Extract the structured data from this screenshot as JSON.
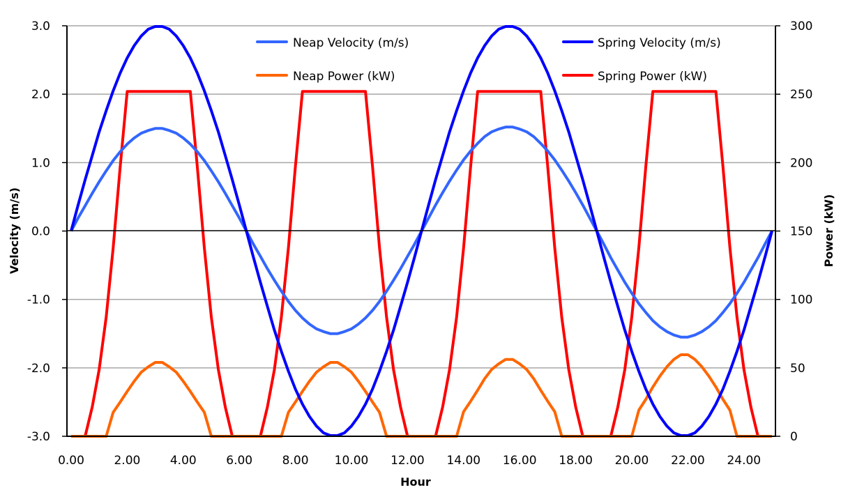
{
  "chart_data": {
    "type": "line",
    "title": "",
    "xlabel": "Hour",
    "ylabel": "Velocity (m/s)",
    "y2label": "Power (kW)",
    "xlim": [
      0,
      25.1
    ],
    "ylim": [
      -3.0,
      3.0
    ],
    "y2lim": [
      0,
      300
    ],
    "x_step": 0.25,
    "x_ticks": [
      "0.00",
      "2.00",
      "4.00",
      "6.00",
      "8.00",
      "10.00",
      "12.00",
      "14.00",
      "16.00",
      "18.00",
      "20.00",
      "22.00",
      "24.00"
    ],
    "x_tick_values": [
      0,
      2,
      4,
      6,
      8,
      10,
      12,
      14,
      16,
      18,
      20,
      22,
      24
    ],
    "y_ticks": [
      "3.0",
      "2.0",
      "1.0",
      "0.0",
      "-1.0",
      "-2.0",
      "-3.0"
    ],
    "y_tick_values": [
      3,
      2,
      1,
      0,
      -1,
      -2,
      -3
    ],
    "y2_ticks": [
      "300",
      "250",
      "200",
      "150",
      "100",
      "50",
      "0"
    ],
    "y2_tick_values": [
      300,
      250,
      200,
      150,
      100,
      50,
      0
    ],
    "grid": true,
    "legend_position": "top",
    "series": [
      {
        "name": "Neap Velocity (m/s)",
        "axis": "left",
        "color": "#3366ff",
        "values": [
          0,
          0.19,
          0.37,
          0.55,
          0.72,
          0.88,
          1.03,
          1.16,
          1.27,
          1.36,
          1.43,
          1.47,
          1.5,
          1.5,
          1.47,
          1.43,
          1.36,
          1.27,
          1.16,
          1.03,
          0.88,
          0.72,
          0.55,
          0.37,
          0.19,
          0,
          -0.19,
          -0.37,
          -0.55,
          -0.72,
          -0.88,
          -1.03,
          -1.16,
          -1.27,
          -1.36,
          -1.43,
          -1.47,
          -1.5,
          -1.5,
          -1.47,
          -1.43,
          -1.36,
          -1.27,
          -1.16,
          -1.03,
          -0.88,
          -0.72,
          -0.55,
          -0.37,
          -0.19,
          0,
          0.19,
          0.38,
          0.56,
          0.73,
          0.89,
          1.04,
          1.17,
          1.28,
          1.38,
          1.45,
          1.49,
          1.52,
          1.52,
          1.49,
          1.45,
          1.38,
          1.28,
          1.17,
          1.04,
          0.89,
          0.73,
          0.56,
          0.38,
          0.19,
          0,
          -0.19,
          -0.39,
          -0.57,
          -0.75,
          -0.91,
          -1.06,
          -1.19,
          -1.31,
          -1.4,
          -1.47,
          -1.52,
          -1.55,
          -1.55,
          -1.52,
          -1.47,
          -1.4,
          -1.31,
          -1.19,
          -1.06,
          -0.91,
          -0.75,
          -0.57,
          -0.39,
          -0.19,
          0
        ]
      },
      {
        "name": "Spring Velocity (m/s)",
        "axis": "left",
        "color": "#0000ff",
        "values": [
          0,
          0.38,
          0.75,
          1.1,
          1.45,
          1.76,
          2.05,
          2.31,
          2.53,
          2.71,
          2.85,
          2.95,
          2.99,
          2.99,
          2.95,
          2.85,
          2.71,
          2.53,
          2.31,
          2.05,
          1.76,
          1.45,
          1.1,
          0.75,
          0.38,
          0,
          -0.38,
          -0.75,
          -1.1,
          -1.45,
          -1.76,
          -2.05,
          -2.31,
          -2.53,
          -2.71,
          -2.85,
          -2.95,
          -2.99,
          -2.99,
          -2.95,
          -2.85,
          -2.71,
          -2.53,
          -2.31,
          -2.05,
          -1.76,
          -1.45,
          -1.1,
          -0.75,
          -0.38,
          0,
          0.38,
          0.75,
          1.1,
          1.45,
          1.76,
          2.05,
          2.31,
          2.53,
          2.71,
          2.85,
          2.95,
          2.99,
          2.99,
          2.95,
          2.85,
          2.71,
          2.53,
          2.31,
          2.05,
          1.76,
          1.45,
          1.1,
          0.75,
          0.38,
          0,
          -0.38,
          -0.75,
          -1.1,
          -1.45,
          -1.76,
          -2.05,
          -2.31,
          -2.53,
          -2.71,
          -2.85,
          -2.95,
          -2.99,
          -2.99,
          -2.95,
          -2.85,
          -2.71,
          -2.53,
          -2.31,
          -2.05,
          -1.76,
          -1.45,
          -1.1,
          -0.75,
          -0.38,
          0
        ]
      },
      {
        "name": "Neap Power (kW)",
        "axis": "right",
        "color": "#ff6600",
        "values": [
          0,
          0,
          0,
          0,
          0,
          0,
          17.5,
          25.0,
          32.8,
          40.2,
          46.8,
          50.8,
          54.0,
          54.0,
          50.8,
          46.8,
          40.2,
          32.8,
          25.0,
          17.5,
          0,
          0,
          0,
          0,
          0,
          0,
          0,
          0,
          0,
          0,
          0,
          17.5,
          25.0,
          32.8,
          40.2,
          46.8,
          50.8,
          54.0,
          54.0,
          50.8,
          46.8,
          40.2,
          32.8,
          25.0,
          17.5,
          0,
          0,
          0,
          0,
          0,
          0,
          0,
          0,
          0,
          0,
          0,
          18.0,
          25.6,
          33.6,
          42.1,
          48.8,
          52.9,
          56.2,
          56.2,
          52.9,
          48.8,
          42.1,
          33.6,
          25.6,
          18.0,
          0,
          0,
          0,
          0,
          0,
          0,
          0,
          0,
          0,
          0,
          0,
          19.1,
          27.0,
          36.0,
          43.9,
          50.8,
          56.2,
          59.6,
          59.6,
          56.2,
          50.8,
          43.9,
          36.0,
          27.0,
          19.1,
          0,
          0,
          0,
          0,
          0,
          0
        ]
      },
      {
        "name": "Spring Power (kW)",
        "axis": "right",
        "color": "#ff0000",
        "values": [
          0,
          0,
          0,
          21.3,
          48.8,
          87.2,
          137.8,
          197.2,
          252,
          252,
          252,
          252,
          252,
          252,
          252,
          252,
          252,
          252,
          197.2,
          137.8,
          87.2,
          48.8,
          21.3,
          0,
          0,
          0,
          0,
          0,
          21.3,
          48.8,
          87.2,
          137.8,
          197.2,
          252,
          252,
          252,
          252,
          252,
          252,
          252,
          252,
          252,
          252,
          197.2,
          137.8,
          87.2,
          48.8,
          21.3,
          0,
          0,
          0,
          0,
          0,
          21.3,
          48.8,
          87.2,
          137.8,
          197.2,
          252,
          252,
          252,
          252,
          252,
          252,
          252,
          252,
          252,
          252,
          197.2,
          137.8,
          87.2,
          48.8,
          21.3,
          0,
          0,
          0,
          0,
          0,
          21.3,
          48.8,
          87.2,
          137.8,
          197.2,
          252,
          252,
          252,
          252,
          252,
          252,
          252,
          252,
          252,
          252,
          197.2,
          137.8,
          87.2,
          48.8,
          21.3,
          0,
          0,
          0
        ]
      }
    ]
  }
}
